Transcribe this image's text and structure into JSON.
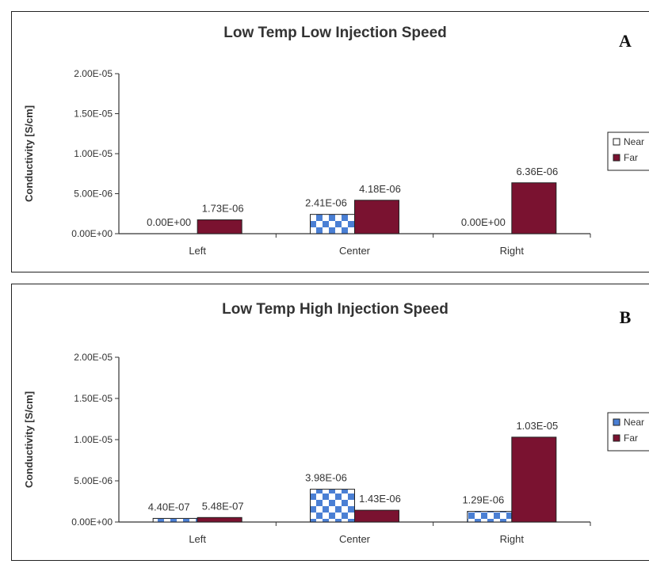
{
  "colors": {
    "near": "#4a7fd4",
    "far": "#7a1230",
    "axis": "#333333"
  },
  "chart_data": [
    {
      "type": "bar",
      "panel": "A",
      "title": "Low Temp Low Injection Speed",
      "ylabel": "Conductivity [S/cm]",
      "xlabel": "",
      "categories": [
        "Left",
        "Center",
        "Right"
      ],
      "yticks": [
        "0.00E+00",
        "5.00E-06",
        "1.00E-05",
        "1.50E-05",
        "2.00E-05"
      ],
      "ylim": [
        0,
        2e-05
      ],
      "legend_position": "right",
      "series": [
        {
          "name": "Near",
          "pattern": "checker",
          "values": [
            0,
            2.41e-06,
            0
          ],
          "labels": [
            "0.00E+00",
            "2.41E-06",
            "0.00E+00"
          ]
        },
        {
          "name": "Far",
          "pattern": "solid",
          "values": [
            1.73e-06,
            4.18e-06,
            6.36e-06
          ],
          "labels": [
            "1.73E-06",
            "4.18E-06",
            "6.36E-06"
          ]
        }
      ]
    },
    {
      "type": "bar",
      "panel": "B",
      "title": "Low Temp High Injection Speed",
      "ylabel": "Conductivity [S/cm]",
      "xlabel": "",
      "categories": [
        "Left",
        "Center",
        "Right"
      ],
      "yticks": [
        "0.00E+00",
        "5.00E-06",
        "1.00E-05",
        "1.50E-05",
        "2.00E-05"
      ],
      "ylim": [
        0,
        2e-05
      ],
      "legend_position": "right",
      "series": [
        {
          "name": "Near",
          "pattern": "checker",
          "values": [
            4.4e-07,
            3.98e-06,
            1.29e-06
          ],
          "labels": [
            "4.40E-07",
            "3.98E-06",
            "1.29E-06"
          ]
        },
        {
          "name": "Far",
          "pattern": "solid",
          "values": [
            5.48e-07,
            1.43e-06,
            1.03e-05
          ],
          "labels": [
            "5.48E-07",
            "1.43E-06",
            "1.03E-05"
          ]
        }
      ]
    }
  ]
}
